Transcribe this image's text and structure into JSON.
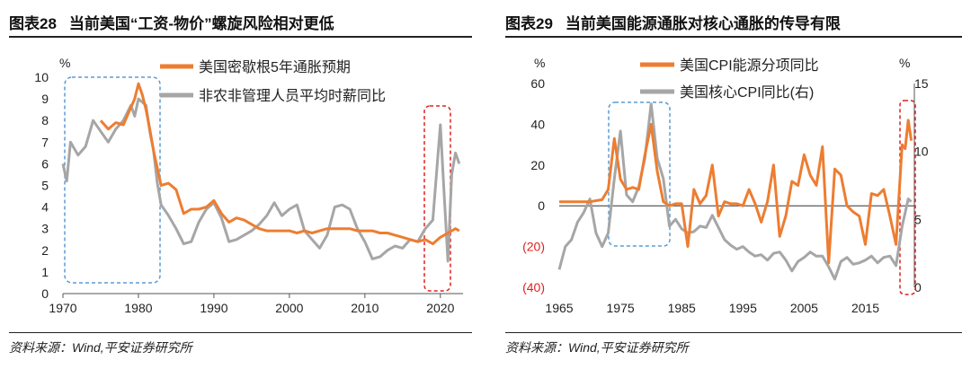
{
  "left": {
    "title_num": "图表28",
    "title_text": "当前美国“工资-物价”螺旋风险相对更低",
    "source": "资料来源：Wind,平安证券研究所",
    "chart_data": {
      "type": "line",
      "unit_label": "%",
      "y_axis": {
        "min": 0,
        "max": 10,
        "ticks": [
          "0",
          "1",
          "2",
          "3",
          "4",
          "5",
          "6",
          "7",
          "8",
          "9",
          "10"
        ]
      },
      "x_axis": {
        "min": 1970,
        "max": 2023,
        "ticks": [
          "1970",
          "1980",
          "1990",
          "2000",
          "2010",
          "2020"
        ]
      },
      "series": [
        {
          "name": "美国密歇根5年通胀预期",
          "color": "#ED7D31",
          "points": [
            [
              1975,
              8.0
            ],
            [
              1976,
              7.6
            ],
            [
              1977,
              7.9
            ],
            [
              1978,
              7.8
            ],
            [
              1979,
              8.6
            ],
            [
              1979.5,
              9.0
            ],
            [
              1980,
              9.7
            ],
            [
              1980.5,
              9.2
            ],
            [
              1981,
              8.5
            ],
            [
              1981.5,
              7.6
            ],
            [
              1982,
              6.6
            ],
            [
              1982.5,
              5.8
            ],
            [
              1983,
              5.0
            ],
            [
              1984,
              5.1
            ],
            [
              1985,
              4.8
            ],
            [
              1986,
              3.7
            ],
            [
              1987,
              3.9
            ],
            [
              1988,
              3.9
            ],
            [
              1989,
              4.0
            ],
            [
              1990,
              4.3
            ],
            [
              1991,
              3.7
            ],
            [
              1992,
              3.3
            ],
            [
              1993,
              3.5
            ],
            [
              1994,
              3.4
            ],
            [
              1995,
              3.2
            ],
            [
              1996,
              3.0
            ],
            [
              1997,
              2.9
            ],
            [
              1998,
              2.9
            ],
            [
              1999,
              2.9
            ],
            [
              2000,
              2.9
            ],
            [
              2001,
              2.8
            ],
            [
              2002,
              2.9
            ],
            [
              2003,
              2.8
            ],
            [
              2004,
              2.9
            ],
            [
              2005,
              3.0
            ],
            [
              2006,
              3.0
            ],
            [
              2007,
              3.0
            ],
            [
              2008,
              3.0
            ],
            [
              2009,
              2.9
            ],
            [
              2010,
              2.9
            ],
            [
              2011,
              2.9
            ],
            [
              2012,
              2.8
            ],
            [
              2013,
              2.8
            ],
            [
              2014,
              2.7
            ],
            [
              2015,
              2.6
            ],
            [
              2016,
              2.5
            ],
            [
              2017,
              2.4
            ],
            [
              2018,
              2.5
            ],
            [
              2019,
              2.3
            ],
            [
              2020,
              2.6
            ],
            [
              2021,
              2.8
            ],
            [
              2022,
              3.0
            ],
            [
              2022.5,
              2.9
            ]
          ]
        },
        {
          "name": "非农非管理人员平均时薪同比",
          "color": "#A6A6A6",
          "points": [
            [
              1970,
              6.0
            ],
            [
              1970.5,
              5.2
            ],
            [
              1971,
              7.0
            ],
            [
              1972,
              6.4
            ],
            [
              1973,
              6.8
            ],
            [
              1974,
              8.0
            ],
            [
              1975,
              7.5
            ],
            [
              1976,
              7.0
            ],
            [
              1977,
              7.6
            ],
            [
              1978,
              8.0
            ],
            [
              1979,
              8.7
            ],
            [
              1979.5,
              8.2
            ],
            [
              1980,
              9.0
            ],
            [
              1981,
              8.7
            ],
            [
              1981.5,
              7.5
            ],
            [
              1982,
              6.6
            ],
            [
              1982.5,
              5.1
            ],
            [
              1983,
              4.1
            ],
            [
              1984,
              3.6
            ],
            [
              1985,
              3.0
            ],
            [
              1986,
              2.3
            ],
            [
              1987,
              2.4
            ],
            [
              1988,
              3.3
            ],
            [
              1989,
              3.9
            ],
            [
              1990,
              4.2
            ],
            [
              1991,
              3.5
            ],
            [
              1992,
              2.4
            ],
            [
              1993,
              2.5
            ],
            [
              1994,
              2.7
            ],
            [
              1995,
              2.9
            ],
            [
              1996,
              3.2
            ],
            [
              1997,
              3.6
            ],
            [
              1998,
              4.2
            ],
            [
              1999,
              3.6
            ],
            [
              2000,
              3.9
            ],
            [
              2001,
              4.1
            ],
            [
              2002,
              2.9
            ],
            [
              2003,
              2.5
            ],
            [
              2004,
              2.1
            ],
            [
              2005,
              2.7
            ],
            [
              2006,
              4.0
            ],
            [
              2007,
              4.1
            ],
            [
              2008,
              3.9
            ],
            [
              2009,
              3.0
            ],
            [
              2010,
              2.4
            ],
            [
              2011,
              1.6
            ],
            [
              2012,
              1.7
            ],
            [
              2013,
              2.0
            ],
            [
              2014,
              2.2
            ],
            [
              2015,
              2.1
            ],
            [
              2016,
              2.5
            ],
            [
              2017,
              2.4
            ],
            [
              2018,
              3.0
            ],
            [
              2019,
              3.4
            ],
            [
              2020,
              7.8
            ],
            [
              2020.5,
              4.6
            ],
            [
              2021,
              1.5
            ],
            [
              2021.5,
              5.5
            ],
            [
              2022,
              6.5
            ],
            [
              2022.5,
              6.0
            ]
          ]
        }
      ]
    }
  },
  "right": {
    "title_num": "图表29",
    "title_text": "当前美国能源通胀对核心通胀的传导有限",
    "source": "资料来源：Wind,平安证券研究所",
    "chart_data": {
      "type": "line",
      "left_unit_label": "%",
      "right_unit_label": "%",
      "y_axis_left": {
        "min": -40,
        "max": 60,
        "ticks": [
          "(40)",
          "(20)",
          "0",
          "20",
          "40",
          "60"
        ]
      },
      "y_axis_right": {
        "min": 0,
        "max": 15,
        "ticks": [
          "0",
          "5",
          "10",
          "15"
        ]
      },
      "x_axis": {
        "min": 1965,
        "max": 2023,
        "ticks": [
          "1965",
          "1975",
          "1985",
          "1995",
          "2005",
          "2015"
        ]
      },
      "series": [
        {
          "name": "美国CPI能源分项同比",
          "axis": "left",
          "color": "#ED7D31",
          "points": [
            [
              1965,
              2
            ],
            [
              1970,
              2
            ],
            [
              1972,
              3
            ],
            [
              1973,
              8
            ],
            [
              1974,
              33
            ],
            [
              1975,
              13
            ],
            [
              1976,
              8
            ],
            [
              1977,
              9
            ],
            [
              1978,
              8
            ],
            [
              1979,
              25
            ],
            [
              1980,
              40
            ],
            [
              1981,
              17
            ],
            [
              1982,
              2
            ],
            [
              1983,
              0
            ],
            [
              1984,
              1
            ],
            [
              1985,
              1
            ],
            [
              1986,
              -20
            ],
            [
              1987,
              8
            ],
            [
              1988,
              1
            ],
            [
              1989,
              5
            ],
            [
              1990,
              20
            ],
            [
              1991,
              -5
            ],
            [
              1992,
              2
            ],
            [
              1993,
              1
            ],
            [
              1994,
              1
            ],
            [
              1995,
              0
            ],
            [
              1996,
              8
            ],
            [
              1997,
              1
            ],
            [
              1998,
              -8
            ],
            [
              1999,
              2
            ],
            [
              2000,
              20
            ],
            [
              2001,
              -15
            ],
            [
              2002,
              -5
            ],
            [
              2003,
              12
            ],
            [
              2004,
              10
            ],
            [
              2005,
              25
            ],
            [
              2006,
              15
            ],
            [
              2007,
              10
            ],
            [
              2008,
              29
            ],
            [
              2009,
              -28
            ],
            [
              2010,
              18
            ],
            [
              2011,
              15
            ],
            [
              2012,
              0
            ],
            [
              2013,
              -3
            ],
            [
              2014,
              -5
            ],
            [
              2015,
              -19
            ],
            [
              2016,
              6
            ],
            [
              2017,
              5
            ],
            [
              2018,
              8
            ],
            [
              2019,
              -5
            ],
            [
              2020,
              -19
            ],
            [
              2021,
              30
            ],
            [
              2021.5,
              28
            ],
            [
              2022,
              42
            ],
            [
              2022.5,
              32
            ]
          ]
        },
        {
          "name": "美国核心CPI同比(右)",
          "axis": "right",
          "color": "#A6A6A6",
          "points": [
            [
              1965,
              1.3
            ],
            [
              1966,
              3.0
            ],
            [
              1967,
              3.5
            ],
            [
              1968,
              4.8
            ],
            [
              1969,
              5.5
            ],
            [
              1970,
              6.5
            ],
            [
              1971,
              4.0
            ],
            [
              1972,
              3.0
            ],
            [
              1973,
              4.0
            ],
            [
              1974,
              8.0
            ],
            [
              1975,
              11.5
            ],
            [
              1976,
              6.8
            ],
            [
              1977,
              6.3
            ],
            [
              1978,
              7.4
            ],
            [
              1979,
              9.5
            ],
            [
              1980,
              13.5
            ],
            [
              1981,
              9.5
            ],
            [
              1982,
              8.0
            ],
            [
              1983,
              4.5
            ],
            [
              1984,
              5.0
            ],
            [
              1985,
              4.3
            ],
            [
              1986,
              4.0
            ],
            [
              1987,
              4.1
            ],
            [
              1988,
              4.5
            ],
            [
              1989,
              4.4
            ],
            [
              1990,
              5.3
            ],
            [
              1991,
              4.4
            ],
            [
              1992,
              3.5
            ],
            [
              1993,
              3.1
            ],
            [
              1994,
              2.8
            ],
            [
              1995,
              3.0
            ],
            [
              1996,
              2.6
            ],
            [
              1997,
              2.3
            ],
            [
              1998,
              2.4
            ],
            [
              1999,
              2.0
            ],
            [
              2000,
              2.5
            ],
            [
              2001,
              2.6
            ],
            [
              2002,
              2.0
            ],
            [
              2003,
              1.2
            ],
            [
              2004,
              1.9
            ],
            [
              2005,
              2.2
            ],
            [
              2006,
              2.6
            ],
            [
              2007,
              2.3
            ],
            [
              2008,
              2.3
            ],
            [
              2009,
              1.5
            ],
            [
              2010,
              0.6
            ],
            [
              2011,
              1.9
            ],
            [
              2012,
              2.2
            ],
            [
              2013,
              1.7
            ],
            [
              2014,
              1.8
            ],
            [
              2015,
              2.0
            ],
            [
              2016,
              2.3
            ],
            [
              2017,
              1.8
            ],
            [
              2018,
              2.2
            ],
            [
              2019,
              2.3
            ],
            [
              2020,
              1.6
            ],
            [
              2021,
              4.5
            ],
            [
              2021.5,
              5.5
            ],
            [
              2022,
              6.5
            ],
            [
              2022.5,
              6.3
            ]
          ]
        }
      ]
    }
  }
}
